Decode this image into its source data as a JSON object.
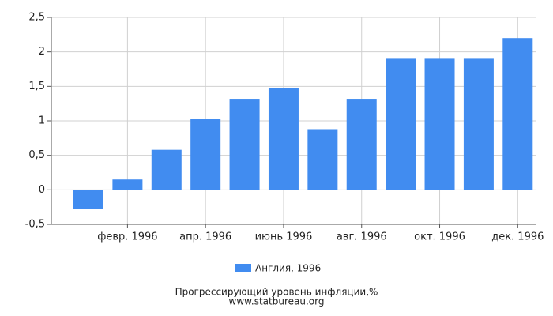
{
  "chart_data": {
    "type": "bar",
    "title": "Прогрессирующий уровень инфляции,%",
    "source": "www.statbureau.org",
    "categories": [
      null,
      "февр. 1996",
      null,
      "апр. 1996",
      null,
      "июнь 1996",
      null,
      "авг. 1996",
      null,
      "окт. 1996",
      null,
      "дек. 1996"
    ],
    "series": [
      {
        "name": "Англия, 1996",
        "color": "#418cf0",
        "values": [
          -0.28,
          0.15,
          0.58,
          1.03,
          1.32,
          1.47,
          0.88,
          1.32,
          1.9,
          1.9,
          1.9,
          2.2
        ]
      }
    ],
    "ylim": [
      -0.5,
      2.5
    ],
    "yticks": [
      {
        "value": -0.5,
        "label": "-0,5"
      },
      0,
      {
        "value": 0.5,
        "label": "0,5"
      },
      1,
      {
        "value": 1.5,
        "label": "1,5"
      },
      2,
      {
        "value": 2.5,
        "label": "2,5"
      }
    ],
    "grid": true
  }
}
